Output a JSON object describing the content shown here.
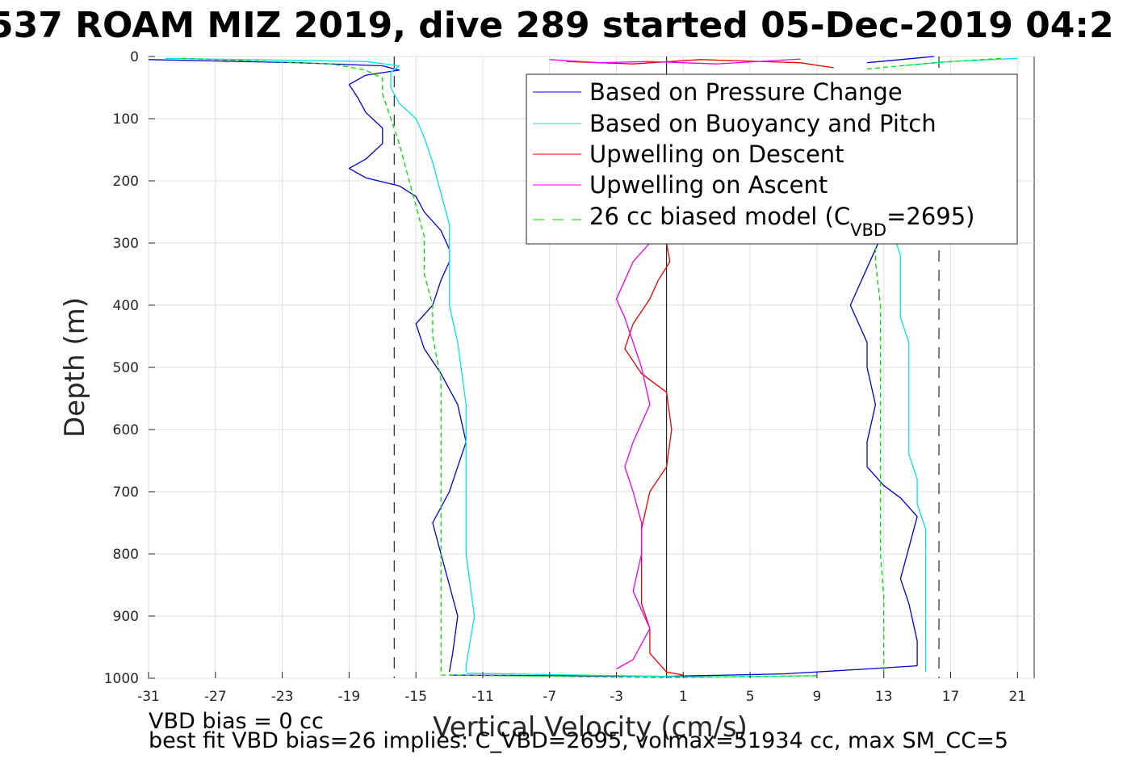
{
  "chart_data": {
    "type": "line",
    "title": "537 ROAM MIZ 2019, dive 289 started 05-Dec-2019 04:2",
    "xlabel": "Vertical Velocity (cm/s)",
    "ylabel": "Depth (m)",
    "xlim": [
      -31,
      22
    ],
    "ylim": [
      0,
      1000
    ],
    "y_reversed": true,
    "grid": true,
    "legend_position": "top-right",
    "x_ticks": [
      -31,
      -27,
      -23,
      -19,
      -15,
      -11,
      -7,
      -3,
      1,
      5,
      9,
      13,
      17,
      21
    ],
    "y_ticks": [
      0,
      100,
      200,
      300,
      400,
      500,
      600,
      700,
      800,
      900,
      1000
    ],
    "x_tick_labels": [
      "-31",
      "-27",
      "-23",
      "-19",
      "-15",
      "-11",
      "-7",
      "-3",
      "1",
      "5",
      "9",
      "13",
      "17",
      "21"
    ],
    "y_tick_labels": [
      "0",
      "100",
      "200",
      "300",
      "400",
      "500",
      "600",
      "700",
      "800",
      "900",
      "1000"
    ],
    "reference_lines": [
      {
        "x": 0,
        "style": "solid",
        "color": "#000000"
      },
      {
        "x": -16.3,
        "style": "dashed",
        "color": "#000000"
      },
      {
        "x": 16.3,
        "style": "dashed",
        "color": "#000000"
      }
    ],
    "series": [
      {
        "name": "Based on Pressure Change",
        "color": "#0000cc",
        "style": "solid",
        "branches": [
          {
            "points": [
              [
                -31,
                5
              ],
              [
                -22,
                10
              ],
              [
                -17,
                15
              ],
              [
                -16,
                22
              ],
              [
                -18,
                30
              ],
              [
                -19,
                45
              ],
              [
                -18.5,
                65
              ],
              [
                -18,
                90
              ],
              [
                -17,
                115
              ],
              [
                -17,
                140
              ],
              [
                -18,
                165
              ],
              [
                -19,
                180
              ],
              [
                -18,
                195
              ],
              [
                -16,
                208
              ],
              [
                -15,
                225
              ],
              [
                -14.5,
                250
              ],
              [
                -13.5,
                280
              ],
              [
                -13,
                310
              ],
              [
                -13,
                330
              ],
              [
                -13.5,
                360
              ],
              [
                -14,
                400
              ],
              [
                -15,
                430
              ],
              [
                -14.5,
                470
              ],
              [
                -13.5,
                510
              ],
              [
                -12.5,
                560
              ],
              [
                -12,
                620
              ],
              [
                -12.5,
                660
              ],
              [
                -13,
                700
              ],
              [
                -14,
                750
              ],
              [
                -13.5,
                800
              ],
              [
                -13,
                850
              ],
              [
                -12.5,
                900
              ],
              [
                -12.8,
                960
              ],
              [
                -13,
                990
              ]
            ]
          },
          {
            "points": [
              [
                -13,
                995
              ],
              [
                0,
                997
              ],
              [
                7,
                993
              ],
              [
                12,
                985
              ],
              [
                15,
                980
              ]
            ]
          },
          {
            "points": [
              [
                15,
                980
              ],
              [
                15,
                940
              ],
              [
                14.5,
                880
              ],
              [
                14,
                840
              ],
              [
                14.5,
                790
              ],
              [
                15,
                740
              ],
              [
                14,
                710
              ],
              [
                13,
                690
              ],
              [
                12,
                660
              ],
              [
                12,
                620
              ],
              [
                12.5,
                560
              ],
              [
                12,
                500
              ],
              [
                12,
                460
              ],
              [
                11.5,
                430
              ],
              [
                11,
                400
              ],
              [
                11.5,
                370
              ],
              [
                12,
                340
              ],
              [
                12.5,
                310
              ],
              [
                13,
                280
              ]
            ]
          },
          {
            "points": [
              [
                12,
                10
              ],
              [
                14,
                5
              ],
              [
                16,
                0
              ]
            ]
          }
        ]
      },
      {
        "name": "Based on Buoyancy and Pitch",
        "color": "#00e5e5",
        "style": "solid",
        "branches": [
          {
            "points": [
              [
                -30,
                3
              ],
              [
                -18,
                8
              ],
              [
                -16,
                15
              ],
              [
                -16.5,
                25
              ],
              [
                -16.5,
                50
              ],
              [
                -16,
                75
              ],
              [
                -15,
                100
              ],
              [
                -14.5,
                130
              ],
              [
                -14,
                170
              ],
              [
                -13.5,
                220
              ],
              [
                -13,
                270
              ],
              [
                -13,
                320
              ],
              [
                -13,
                400
              ],
              [
                -12.5,
                460
              ],
              [
                -12,
                560
              ],
              [
                -12,
                640
              ],
              [
                -12,
                720
              ],
              [
                -12,
                800
              ],
              [
                -11.5,
                900
              ],
              [
                -12,
                980
              ],
              [
                -12,
                990
              ]
            ]
          },
          {
            "points": [
              [
                -12,
                992
              ],
              [
                2,
                998
              ],
              [
                9,
                996
              ]
            ]
          },
          {
            "points": [
              [
                15.5,
                990
              ],
              [
                15.5,
                940
              ],
              [
                15.5,
                880
              ],
              [
                15.5,
                820
              ],
              [
                15.5,
                760
              ],
              [
                15,
                720
              ],
              [
                15,
                680
              ],
              [
                14.5,
                640
              ],
              [
                14.5,
                580
              ],
              [
                14.5,
                520
              ],
              [
                14.5,
                460
              ],
              [
                14,
                420
              ],
              [
                14,
                380
              ],
              [
                14,
                320
              ],
              [
                13.5,
                280
              ]
            ]
          },
          {
            "points": [
              [
                14,
                15
              ],
              [
                17,
                8
              ],
              [
                21,
                3
              ]
            ]
          }
        ]
      },
      {
        "name": "Upwelling on Descent",
        "color": "#ee0000",
        "style": "solid",
        "branches": [
          {
            "points": [
              [
                0,
                300
              ],
              [
                0.2,
                330
              ],
              [
                -0.5,
                360
              ],
              [
                -1,
                390
              ],
              [
                -2,
                430
              ],
              [
                -2.5,
                470
              ],
              [
                -1.5,
                510
              ],
              [
                0,
                540
              ],
              [
                0.3,
                600
              ],
              [
                0,
                660
              ],
              [
                -1,
                700
              ],
              [
                -1.5,
                760
              ],
              [
                -1.5,
                820
              ],
              [
                -1.5,
                880
              ],
              [
                -1,
                920
              ],
              [
                -1,
                960
              ],
              [
                0,
                990
              ],
              [
                1,
                995
              ]
            ]
          },
          {
            "points": [
              [
                -6,
                8
              ],
              [
                -2,
                12
              ],
              [
                2,
                5
              ],
              [
                8,
                10
              ],
              [
                10,
                18
              ]
            ]
          }
        ]
      },
      {
        "name": "Upwelling on Ascent",
        "color": "#ee00ee",
        "style": "solid",
        "branches": [
          {
            "points": [
              [
                -1,
                300
              ],
              [
                -2,
                330
              ],
              [
                -2.5,
                360
              ],
              [
                -3,
                390
              ],
              [
                -2.5,
                420
              ],
              [
                -2,
                460
              ],
              [
                -1.5,
                500
              ],
              [
                -1,
                560
              ],
              [
                -2,
                620
              ],
              [
                -2.5,
                660
              ],
              [
                -2,
                700
              ],
              [
                -1.5,
                750
              ],
              [
                -1.5,
                800
              ],
              [
                -2,
                860
              ],
              [
                -1,
                920
              ],
              [
                -2,
                970
              ],
              [
                -3,
                985
              ]
            ]
          },
          {
            "points": [
              [
                -7,
                5
              ],
              [
                -4,
                10
              ],
              [
                -1,
                8
              ],
              [
                3,
                12
              ],
              [
                8,
                4
              ]
            ]
          }
        ]
      },
      {
        "name": "26 cc biased model (C",
        "color": "#00dd00",
        "style": "dashed",
        "branches": [
          {
            "points": [
              [
                -29,
                3
              ],
              [
                -20,
                12
              ],
              [
                -18,
                22
              ],
              [
                -17,
                35
              ],
              [
                -17,
                60
              ],
              [
                -16.5,
                100
              ],
              [
                -16,
                140
              ],
              [
                -15.5,
                190
              ],
              [
                -15,
                240
              ],
              [
                -14.5,
                290
              ],
              [
                -14.5,
                350
              ],
              [
                -14,
                400
              ],
              [
                -14,
                450
              ],
              [
                -13.5,
                520
              ],
              [
                -13.5,
                600
              ],
              [
                -13.5,
                700
              ],
              [
                -13.5,
                800
              ],
              [
                -13.5,
                900
              ],
              [
                -13.5,
                990
              ]
            ]
          },
          {
            "points": [
              [
                -13.5,
                995
              ],
              [
                0,
                999
              ],
              [
                9,
                996
              ]
            ]
          },
          {
            "points": [
              [
                13,
                990
              ],
              [
                13,
                930
              ],
              [
                13,
                870
              ],
              [
                12.8,
                800
              ],
              [
                12.8,
                720
              ],
              [
                12.8,
                640
              ],
              [
                12.8,
                560
              ],
              [
                12.8,
                480
              ],
              [
                12.8,
                400
              ],
              [
                12.5,
                330
              ],
              [
                12.5,
                280
              ]
            ]
          },
          {
            "points": [
              [
                12,
                20
              ],
              [
                16,
                10
              ],
              [
                20,
                3
              ]
            ]
          }
        ]
      }
    ]
  },
  "legend": {
    "items": [
      "Based on Pressure Change",
      "Based on Buoyancy and Pitch",
      "Upwelling on Descent",
      "Upwelling on Ascent"
    ],
    "model_label_prefix": "26 cc biased model (C",
    "model_label_sub": "VBD",
    "model_label_suffix": "=2695)"
  },
  "notes": {
    "vbd_bias": "VBD bias = 0 cc",
    "best_fit": "best fit VBD bias=26 implies: C_VBD=2695, volmax=51934 cc, max SM_CC=5"
  }
}
